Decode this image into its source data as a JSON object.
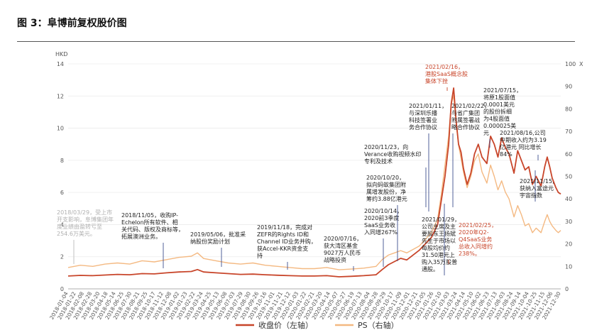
{
  "figure_title": "图 3：阜博前复权股价图",
  "chart_data": {
    "type": "line",
    "left_axis": {
      "unit": "HKD",
      "ylim": [
        0,
        14
      ],
      "ticks": [
        0,
        2,
        4,
        6,
        8,
        10,
        12,
        14
      ]
    },
    "right_axis": {
      "unit": "X",
      "ylim": [
        0,
        100
      ],
      "ticks": [
        0,
        10,
        20,
        30,
        40,
        50,
        60,
        70,
        80,
        90,
        100
      ]
    },
    "x_ticks": [
      "2018-01-04",
      "2018-01-22",
      "2018-02-08",
      "2018-02-28",
      "2018-03-20",
      "2018-04-18",
      "2018-05-14",
      "2018-06-25",
      "2018-07-30",
      "2018-08-21",
      "2018-09-25",
      "2018-10-17",
      "2018-11-12",
      "2018-12-08",
      "2019-01-02",
      "2019-01-23",
      "2019-02-22",
      "2019-03-24",
      "2019-04-25",
      "2019-05-13",
      "2019-06-08",
      "2019-07-03",
      "2019-07-29",
      "2019-08-30",
      "2019-09-26",
      "2019-10-16",
      "2019-11-01",
      "2019-11-21",
      "2019-12-12",
      "2020-01-03",
      "2020-01-22",
      "2020-02-21",
      "2020-03-20",
      "2020-04-14",
      "2020-05-07",
      "2020-05-27",
      "2020-06-19",
      "2020-07-13",
      "2020-08-04",
      "2020-08-28",
      "2020-09-29",
      "2020-10-17",
      "2020-11-09",
      "2020-12-01",
      "2020-12-21",
      "2021-01-05",
      "2021-01-26",
      "2021-02-10",
      "2021-03-03",
      "2021-03-24",
      "2021-04-14",
      "2021-05-10",
      "2021-06-02",
      "2021-06-23",
      "2021-07-13",
      "2021-08-03",
      "2021-08-24",
      "2021-09-14",
      "2021-10-04",
      "2021-10-25",
      "2021-11-15",
      "2021-12-06",
      "2021-12-30"
    ],
    "x_numeric_domain": [
      2018.0,
      2022.0
    ],
    "series": [
      {
        "name": "收盘价（左轴）",
        "axis": "left",
        "color": "#c8452a",
        "points": [
          [
            2018.0,
            0.8
          ],
          [
            2018.1,
            0.84
          ],
          [
            2018.2,
            0.82
          ],
          [
            2018.3,
            0.86
          ],
          [
            2018.4,
            0.9
          ],
          [
            2018.5,
            0.88
          ],
          [
            2018.6,
            0.95
          ],
          [
            2018.7,
            0.93
          ],
          [
            2018.8,
            1.0
          ],
          [
            2018.9,
            1.05
          ],
          [
            2019.0,
            1.08
          ],
          [
            2019.05,
            1.2
          ],
          [
            2019.1,
            1.05
          ],
          [
            2019.2,
            1.0
          ],
          [
            2019.3,
            0.95
          ],
          [
            2019.4,
            0.9
          ],
          [
            2019.5,
            0.92
          ],
          [
            2019.6,
            0.88
          ],
          [
            2019.7,
            0.85
          ],
          [
            2019.8,
            0.82
          ],
          [
            2019.9,
            0.8
          ],
          [
            2020.0,
            0.8
          ],
          [
            2020.1,
            0.82
          ],
          [
            2020.2,
            0.75
          ],
          [
            2020.3,
            0.78
          ],
          [
            2020.4,
            0.82
          ],
          [
            2020.5,
            0.88
          ],
          [
            2020.55,
            1.2
          ],
          [
            2020.6,
            1.5
          ],
          [
            2020.65,
            1.7
          ],
          [
            2020.7,
            1.9
          ],
          [
            2020.75,
            1.8
          ],
          [
            2020.8,
            2.1
          ],
          [
            2020.85,
            2.4
          ],
          [
            2020.9,
            2.8
          ],
          [
            2020.95,
            3.2
          ],
          [
            2021.0,
            4.0
          ],
          [
            2021.03,
            5.5
          ],
          [
            2021.06,
            7.0
          ],
          [
            2021.09,
            9.0
          ],
          [
            2021.11,
            11.5
          ],
          [
            2021.13,
            12.5
          ],
          [
            2021.15,
            10.5
          ],
          [
            2021.17,
            9.0
          ],
          [
            2021.19,
            8.5
          ],
          [
            2021.21,
            7.5
          ],
          [
            2021.24,
            6.5
          ],
          [
            2021.27,
            7.2
          ],
          [
            2021.3,
            8.4
          ],
          [
            2021.33,
            9.0
          ],
          [
            2021.36,
            8.2
          ],
          [
            2021.4,
            7.8
          ],
          [
            2021.43,
            9.5
          ],
          [
            2021.46,
            9.0
          ],
          [
            2021.49,
            8.2
          ],
          [
            2021.52,
            9.4
          ],
          [
            2021.55,
            8.8
          ],
          [
            2021.58,
            8.4
          ],
          [
            2021.62,
            7.2
          ],
          [
            2021.65,
            8.6
          ],
          [
            2021.68,
            8.0
          ],
          [
            2021.71,
            7.4
          ],
          [
            2021.74,
            7.6
          ],
          [
            2021.77,
            6.5
          ],
          [
            2021.8,
            7.0
          ],
          [
            2021.84,
            6.4
          ],
          [
            2021.87,
            7.6
          ],
          [
            2021.89,
            8.2
          ],
          [
            2021.91,
            7.6
          ],
          [
            2021.93,
            6.9
          ],
          [
            2021.96,
            6.3
          ],
          [
            2021.98,
            6.0
          ],
          [
            2022.0,
            5.9
          ]
        ]
      },
      {
        "name": "PS（右轴）",
        "axis": "right",
        "color": "#f4b982",
        "points": [
          [
            2018.0,
            9.5
          ],
          [
            2018.1,
            10.5
          ],
          [
            2018.2,
            10.0
          ],
          [
            2018.3,
            11.0
          ],
          [
            2018.4,
            11.5
          ],
          [
            2018.5,
            11.0
          ],
          [
            2018.6,
            12.5
          ],
          [
            2018.7,
            12.0
          ],
          [
            2018.8,
            13.0
          ],
          [
            2018.9,
            14.0
          ],
          [
            2019.0,
            14.5
          ],
          [
            2019.05,
            16.0
          ],
          [
            2019.1,
            13.5
          ],
          [
            2019.2,
            12.5
          ],
          [
            2019.3,
            11.5
          ],
          [
            2019.4,
            11.0
          ],
          [
            2019.5,
            11.5
          ],
          [
            2019.6,
            10.5
          ],
          [
            2019.7,
            10.0
          ],
          [
            2019.8,
            9.5
          ],
          [
            2019.9,
            9.0
          ],
          [
            2020.0,
            9.0
          ],
          [
            2020.1,
            9.5
          ],
          [
            2020.2,
            8.5
          ],
          [
            2020.3,
            8.8
          ],
          [
            2020.4,
            9.2
          ],
          [
            2020.5,
            10.0
          ],
          [
            2020.55,
            13.0
          ],
          [
            2020.6,
            15.0
          ],
          [
            2020.65,
            16.0
          ],
          [
            2020.7,
            17.0
          ],
          [
            2020.75,
            16.0
          ],
          [
            2020.8,
            17.5
          ],
          [
            2020.85,
            19.0
          ],
          [
            2020.9,
            22.0
          ],
          [
            2020.95,
            25.0
          ],
          [
            2021.0,
            31.0
          ],
          [
            2021.03,
            42.0
          ],
          [
            2021.06,
            55.0
          ],
          [
            2021.09,
            68.0
          ],
          [
            2021.11,
            82.0
          ],
          [
            2021.13,
            86.0
          ],
          [
            2021.15,
            74.0
          ],
          [
            2021.17,
            64.0
          ],
          [
            2021.19,
            58.0
          ],
          [
            2021.21,
            52.0
          ],
          [
            2021.24,
            45.0
          ],
          [
            2021.27,
            50.0
          ],
          [
            2021.3,
            57.0
          ],
          [
            2021.33,
            60.0
          ],
          [
            2021.36,
            52.0
          ],
          [
            2021.4,
            47.0
          ],
          [
            2021.43,
            55.0
          ],
          [
            2021.46,
            50.0
          ],
          [
            2021.49,
            44.0
          ],
          [
            2021.52,
            48.0
          ],
          [
            2021.55,
            43.0
          ],
          [
            2021.58,
            40.0
          ],
          [
            2021.62,
            32.0
          ],
          [
            2021.65,
            37.0
          ],
          [
            2021.68,
            33.0
          ],
          [
            2021.71,
            28.0
          ],
          [
            2021.74,
            29.0
          ],
          [
            2021.77,
            25.0
          ],
          [
            2021.8,
            27.0
          ],
          [
            2021.84,
            25.0
          ],
          [
            2021.87,
            30.0
          ],
          [
            2021.89,
            33.0
          ],
          [
            2021.91,
            30.0
          ],
          [
            2021.93,
            28.0
          ],
          [
            2021.96,
            26.0
          ],
          [
            2021.98,
            25.0
          ],
          [
            2022.0,
            26.0
          ]
        ]
      }
    ]
  },
  "annotations": [
    {
      "style": "ann-grey",
      "lines": [
        "2018/03/29，受上市",
        "开支影响，阜博集团年",
        "度业绩由盈转亏至",
        "254.6万美元。"
      ]
    },
    {
      "style": "ann",
      "lines": [
        "2018/11/05，收购IP-",
        "Echelon所有软件、相",
        "关代码、版权及商标等，",
        "拓展澳洲业务。"
      ]
    },
    {
      "style": "ann",
      "lines": [
        "2019/05/06，批准采",
        "纳股份奖励计划"
      ]
    },
    {
      "style": "ann",
      "lines": [
        "2019/11/18，完成对",
        "ZEFR的Rights ID和",
        "Channel ID业务并购，",
        "获Accel-KKR资金支",
        "持"
      ]
    },
    {
      "style": "ann",
      "lines": [
        "2020/07/16，",
        "获大湾区基金",
        "9027万人民币",
        "战略投资"
      ]
    },
    {
      "style": "ann",
      "lines": [
        "2020/10/14，",
        "2020前3季度",
        "SaaS业务收",
        "入同增267%"
      ]
    },
    {
      "style": "ann",
      "lines": [
        "2020/10/20，",
        "拟向蚂蚁集团附",
        "属增发股份，净",
        "筹约3.88亿港元"
      ]
    },
    {
      "style": "ann",
      "lines": [
        "2020/11/23，向",
        "Verance收购视频水印",
        "专利及技术"
      ]
    },
    {
      "style": "ann",
      "lines": [
        "2021/01/11，",
        "与深圳乐播",
        "科技签署业",
        "务合作协议"
      ]
    },
    {
      "style": "ann",
      "lines": [
        "2021/01/29，",
        "公司主席及主",
        "要股东王扬斌",
        "先生于市场以",
        "每股均价约",
        "31.50港元上",
        "购入35万股普",
        "通股。"
      ]
    },
    {
      "style": "ann-red",
      "lines": [
        "2021/02/16，",
        "港股SaaS概念股",
        "集体下挫"
      ]
    },
    {
      "style": "ann",
      "lines": [
        "2021/02/22，",
        "与省广集团",
        "附属签署战",
        "略合作协议"
      ]
    },
    {
      "style": "ann-red",
      "lines": [
        "2021/02/25，",
        "2020年Q2-",
        "Q4SaaS业务",
        "总收入同增约",
        "238%。"
      ]
    },
    {
      "style": "ann",
      "lines": [
        "2021/07/15，",
        "将原1股面值",
        "0.0001美元",
        "的股份拆细",
        "为4股面值",
        "0.000025美",
        "元"
      ]
    },
    {
      "style": "ann",
      "lines": [
        "2021/08/16,公司",
        "中期收入约为3.19",
        "亿港元 同比增长",
        "84%"
      ]
    },
    {
      "style": "ann",
      "lines": [
        "2021/11/15,",
        "获纳入富途元",
        "宇宙指数"
      ]
    }
  ],
  "legend": [
    {
      "label": "收盘价（左轴）",
      "color": "#c8452a"
    },
    {
      "label": "PS（右轴）",
      "color": "#f4b982"
    }
  ]
}
